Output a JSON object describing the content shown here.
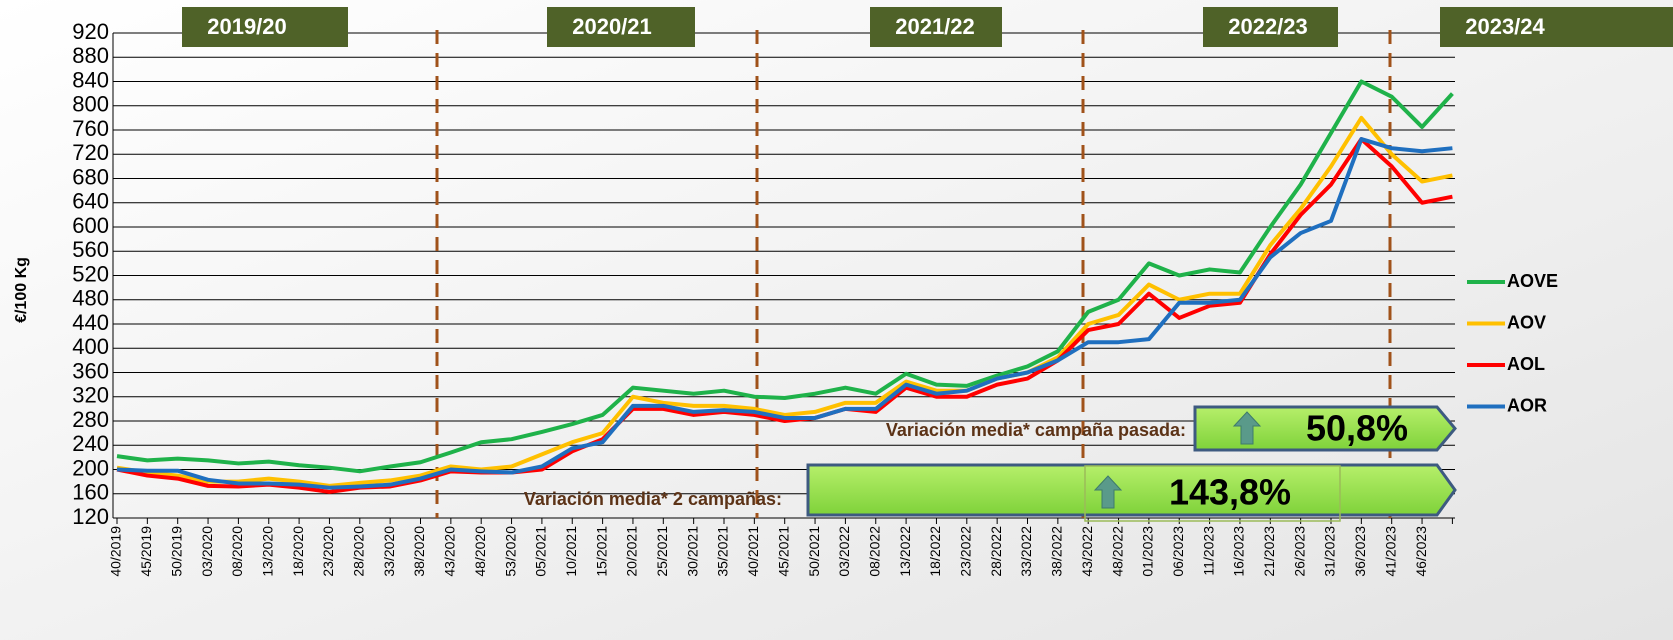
{
  "chart_data": {
    "type": "line",
    "y_label": "€/100 Kg",
    "categories": [
      "40/2019",
      "45/2019",
      "50/2019",
      "03/2020",
      "08/2020",
      "13/2020",
      "18/2020",
      "23/2020",
      "28/2020",
      "33/2020",
      "38/2020",
      "43/2020",
      "48/2020",
      "53/2020",
      "05/2021",
      "10/2021",
      "15/2021",
      "20/2021",
      "25/2021",
      "30/2021",
      "35/2021",
      "40/2021",
      "45/2021",
      "50/2021",
      "03/2022",
      "08/2022",
      "13/2022",
      "18/2022",
      "23/2022",
      "28/2022",
      "33/2022",
      "38/2022",
      "43/2022",
      "48/2022",
      "01/2023",
      "06/2023",
      "11/2023",
      "16/2023",
      "21/2023",
      "26/2023",
      "31/2023",
      "36/2023",
      "41/2023",
      "46/2023",
      null
    ],
    "series": [
      {
        "name": "AOVE",
        "color": "#1fb24a",
        "values": [
          222,
          215,
          218,
          215,
          210,
          213,
          207,
          203,
          197,
          205,
          212,
          228,
          245,
          250,
          262,
          275,
          290,
          335,
          330,
          325,
          330,
          320,
          318,
          325,
          335,
          325,
          358,
          340,
          338,
          355,
          370,
          395,
          460,
          480,
          540,
          520,
          530,
          525,
          600,
          670,
          755,
          840,
          815,
          765,
          820
        ]
      },
      {
        "name": "AOV",
        "color": "#ffc000",
        "values": [
          203,
          195,
          190,
          180,
          180,
          185,
          180,
          173,
          178,
          182,
          190,
          205,
          200,
          205,
          225,
          245,
          260,
          320,
          310,
          305,
          305,
          300,
          290,
          295,
          310,
          310,
          345,
          330,
          330,
          350,
          360,
          385,
          440,
          455,
          505,
          480,
          490,
          490,
          570,
          630,
          700,
          780,
          720,
          675,
          685
        ]
      },
      {
        "name": "AOL",
        "color": "#ff0000",
        "values": [
          200,
          190,
          185,
          173,
          172,
          175,
          170,
          163,
          170,
          172,
          182,
          197,
          195,
          195,
          200,
          230,
          250,
          300,
          300,
          290,
          295,
          290,
          280,
          285,
          300,
          295,
          335,
          320,
          320,
          340,
          350,
          380,
          430,
          440,
          490,
          450,
          470,
          475,
          555,
          620,
          670,
          745,
          700,
          640,
          650
        ]
      },
      {
        "name": "AOR",
        "color": "#1f6fbf",
        "values": [
          200,
          198,
          198,
          183,
          177,
          177,
          175,
          170,
          172,
          175,
          185,
          200,
          197,
          195,
          205,
          235,
          245,
          305,
          305,
          295,
          298,
          295,
          285,
          285,
          300,
          300,
          340,
          325,
          330,
          350,
          360,
          380,
          410,
          410,
          415,
          475,
          475,
          480,
          550,
          590,
          610,
          745,
          730,
          725,
          730
        ]
      }
    ],
    "ylim": [
      120,
      920
    ],
    "yticks": [
      120,
      160,
      200,
      240,
      280,
      320,
      360,
      400,
      440,
      480,
      520,
      560,
      600,
      640,
      680,
      720,
      760,
      800,
      840,
      880,
      920
    ],
    "grid": true,
    "campaigns": [
      "2019/20",
      "2020/21",
      "2021/22",
      "2022/23",
      "2023/24"
    ],
    "annotations": [
      {
        "label": "Variación media* campaña pasada:",
        "value": "50,8%"
      },
      {
        "label": "Variación media* 2 campañas:",
        "value": "143,8%"
      }
    ]
  }
}
